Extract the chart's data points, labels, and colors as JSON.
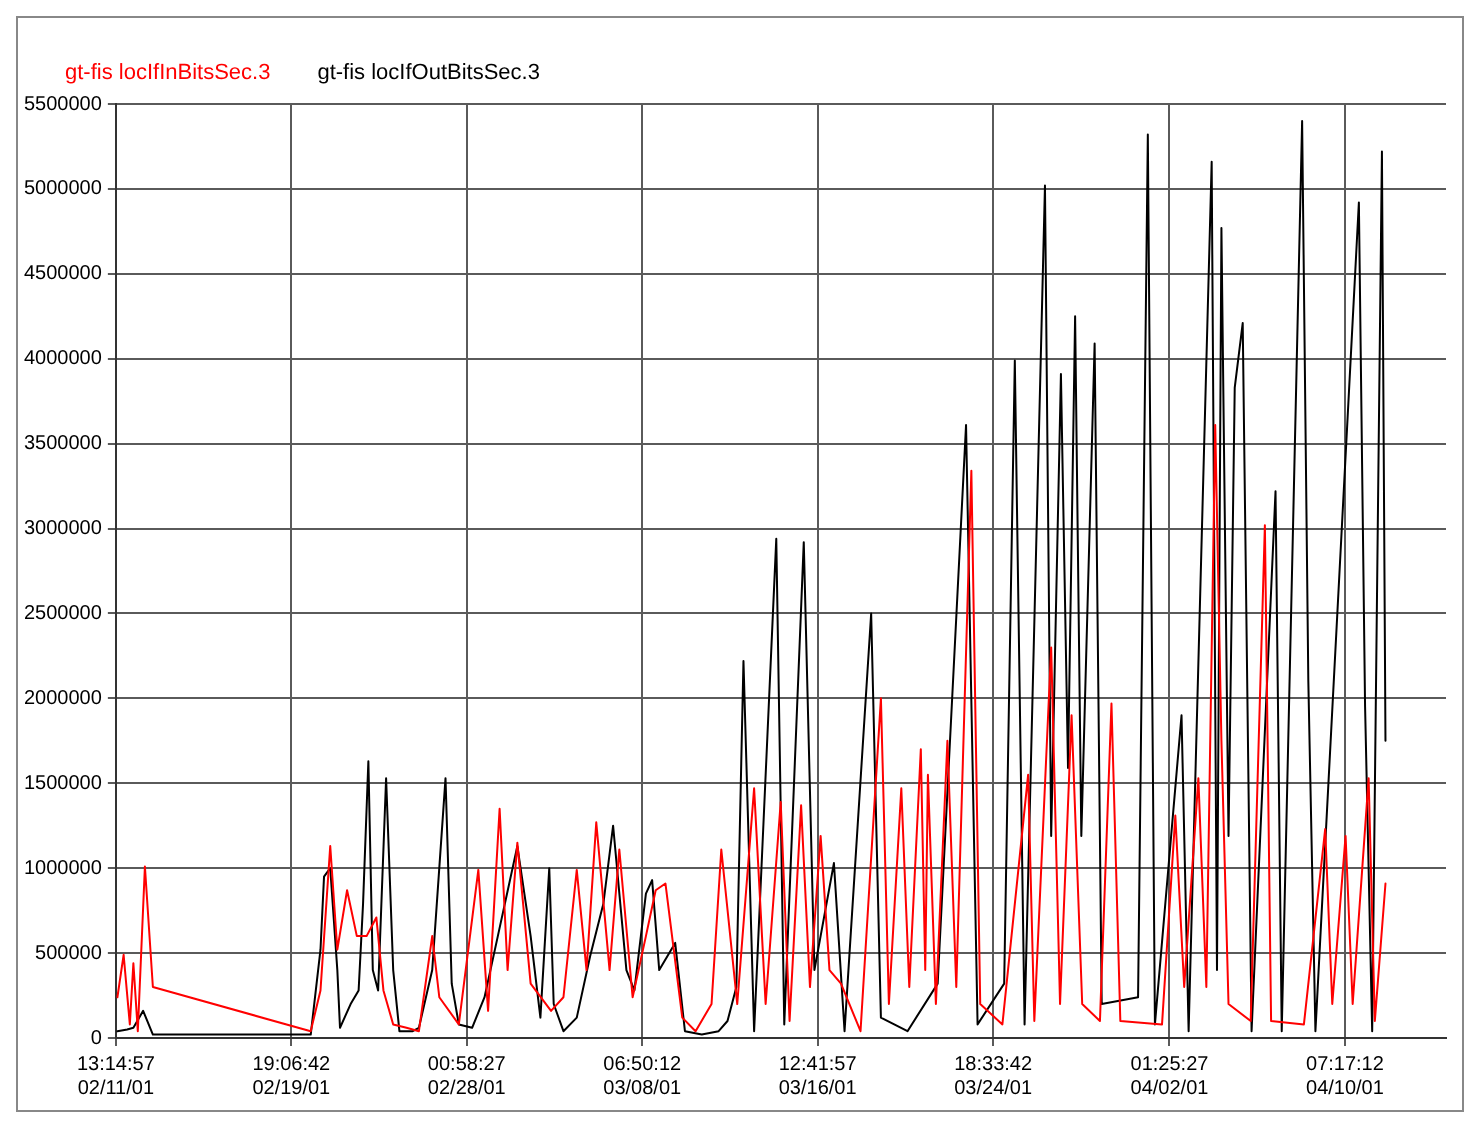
{
  "chart_data": {
    "type": "line",
    "legend": "top left",
    "grid": true,
    "marker": "none",
    "line_style": "solid",
    "xlim": [
      "--02-11T13:14:57",
      "--04-15T01:15"
    ],
    "ylim": [
      0,
      5500000
    ],
    "xticks": [
      {
        "value": "--02-11T13:14:57",
        "label": "13:14:57\n02/11/01"
      },
      {
        "value": "--02-19T19:06:42",
        "label": "19:06:42\n02/19/01"
      },
      {
        "value": "--02-28T00:58:27",
        "label": "00:58:27\n02/28/01"
      },
      {
        "value": "--03-08T06:50:12",
        "label": "06:50:12\n03/08/01"
      },
      {
        "value": "--03-16T12:41:57",
        "label": "12:41:57\n03/16/01"
      },
      {
        "value": "--03-24T18:33:42",
        "label": "18:33:42\n03/24/01"
      },
      {
        "value": "--04-02T01:25:27",
        "label": "01:25:27\n04/02/01"
      },
      {
        "value": "--04-10T07:17:12",
        "label": "07:17:12\n04/10/01"
      }
    ],
    "yticks": [
      0,
      500000,
      1000000,
      1500000,
      2000000,
      2500000,
      3000000,
      3500000,
      4000000,
      4500000,
      5000000,
      5500000
    ],
    "series": [
      {
        "name": "gt-fis locIfInBitsSec.3",
        "color": "#ff0000",
        "x": [
          "--02-11T15:00",
          "--02-11T22:00",
          "--02-12T05:00",
          "--02-12T09:00",
          "--02-12T14:00",
          "--02-12T22:00",
          "--02-13T07:00",
          "--02-20T17:00",
          "--02-21T04:00",
          "--02-21T15:00",
          "--02-21T23:00",
          "--02-22T10:00",
          "--02-22T21:00",
          "--02-23T08:00",
          "--02-23T19:00",
          "--02-24T03:00",
          "--02-24T14:00",
          "--02-25T05:00",
          "--02-25T19:00",
          "--02-26T10:00",
          "--02-26T18:00",
          "--02-27T16:00",
          "--02-28T14:00",
          "--03-01T01:00",
          "--03-01T14:00",
          "--03-01T23:00",
          "--03-02T10:00",
          "--03-03T01:00",
          "--03-04T00:00",
          "--03-04T14:00",
          "--03-05T05:00",
          "--03-05T16:00",
          "--03-06T03:00",
          "--03-06T18:00",
          "--03-07T05:00",
          "--03-07T20:00",
          "--03-08T11:00",
          "--03-08T22:00",
          "--03-09T09:00",
          "--03-10T04:00",
          "--03-10T19:00",
          "--03-11T13:00",
          "--03-12T00:00",
          "--03-12T18:00",
          "--03-13T13:00",
          "--03-14T02:00",
          "--03-14T19:00",
          "--03-15T05:00",
          "--03-15T18:00",
          "--03-16T04:00",
          "--03-16T16:00",
          "--03-17T02:00",
          "--03-17T15:00",
          "--03-18T13:00",
          "--03-19T12:00",
          "--03-19T21:00",
          "--03-20T11:00",
          "--03-20T20:00",
          "--03-21T09:00",
          "--03-21T14:00",
          "--03-21T17:00",
          "--03-22T02:00",
          "--03-22T15:00",
          "--03-23T01:00",
          "--03-23T18:00",
          "--03-24T04:00",
          "--03-25T05:00",
          "--03-26T10:00",
          "--03-26T17:00",
          "--03-27T12:00",
          "--03-27T22:00",
          "--03-28T11:00",
          "--03-28T23:00",
          "--03-29T19:00",
          "--03-30T08:00",
          "--03-30T18:00",
          "--04-01T17:00",
          "--04-02T08:00",
          "--04-02T18:00",
          "--04-03T10:00",
          "--04-03T19:00",
          "--04-04T05:00",
          "--04-04T12:00",
          "--04-04T20:00",
          "--04-05T21:00",
          "--04-06T13:00",
          "--04-06T20:00",
          "--04-08T09:00",
          "--04-09T09:00",
          "--04-09T17:00",
          "--04-10T08:00",
          "--04-10T16:00",
          "--04-11T10:00",
          "--04-11T17:00",
          "--04-12T05:00"
        ],
        "values": [
          240000,
          490000,
          80000,
          440000,
          40000,
          1010000,
          300000,
          40000,
          280000,
          1130000,
          520000,
          870000,
          600000,
          600000,
          710000,
          280000,
          80000,
          60000,
          40000,
          600000,
          240000,
          80000,
          990000,
          160000,
          1350000,
          400000,
          1150000,
          320000,
          160000,
          240000,
          990000,
          400000,
          1270000,
          400000,
          1110000,
          240000,
          600000,
          870000,
          910000,
          120000,
          40000,
          200000,
          1110000,
          200000,
          1470000,
          200000,
          1390000,
          100000,
          1370000,
          300000,
          1190000,
          400000,
          320000,
          40000,
          2000000,
          200000,
          1470000,
          300000,
          1700000,
          400000,
          1550000,
          200000,
          1750000,
          300000,
          3340000,
          200000,
          80000,
          1550000,
          100000,
          2300000,
          200000,
          1900000,
          200000,
          100000,
          1970000,
          100000,
          80000,
          1310000,
          300000,
          1530000,
          300000,
          3610000,
          1750000,
          200000,
          100000,
          3020000,
          100000,
          80000,
          1230000,
          200000,
          1190000,
          200000,
          1530000,
          100000,
          910000
        ]
      },
      {
        "name": "gt-fis locIfOutBitsSec.3",
        "color": "#000000",
        "x": [
          "--02-11T15:00",
          "--02-12T02:00",
          "--02-12T09:00",
          "--02-12T20:00",
          "--02-13T07:00",
          "--02-20T17:00",
          "--02-21T04:00",
          "--02-21T08:00",
          "--02-21T15:00",
          "--02-21T23:00",
          "--02-22T02:00",
          "--02-22T14:00",
          "--02-22T23:00",
          "--02-23T04:00",
          "--02-23T10:00",
          "--02-23T15:00",
          "--02-23T21:00",
          "--02-24T06:00",
          "--02-24T14:00",
          "--02-24T21:00",
          "--02-25T12:00",
          "--02-25T19:00",
          "--02-26T10:00",
          "--02-27T01:00",
          "--02-27T08:00",
          "--02-27T16:00",
          "--02-28T07:00",
          "--02-28T21:00",
          "--03-01T12:00",
          "--03-02T10:00",
          "--03-03T01:00",
          "--03-03T12:00",
          "--03-03T22:00",
          "--03-04T03:00",
          "--03-04T14:00",
          "--03-05T05:00",
          "--03-05T20:00",
          "--03-06T11:00",
          "--03-06T22:00",
          "--03-07T13:00",
          "--03-07T22:00",
          "--03-08T11:00",
          "--03-08T18:00",
          "--03-09T02:00",
          "--03-09T20:00",
          "--03-10T07:00",
          "--03-11T02:00",
          "--03-11T21:00",
          "--03-12T07:00",
          "--03-12T17:00",
          "--03-13T01:00",
          "--03-13T13:00",
          "--03-14T14:00",
          "--03-14T23:00",
          "--03-15T21:00",
          "--03-16T09:00",
          "--03-17T07:00",
          "--03-17T19:00",
          "--03-19T01:00",
          "--03-19T12:00",
          "--03-20T18:00",
          "--03-22T04:00",
          "--03-23T12:00",
          "--03-24T01:00",
          "--03-25T07:00",
          "--03-25T19:00",
          "--03-26T06:00",
          "--03-27T05:00",
          "--03-27T12:00",
          "--03-27T23:00",
          "--03-28T07:00",
          "--03-28T15:00",
          "--03-28T22:00",
          "--03-29T13:00",
          "--03-29T21:00",
          "--03-31T14:00",
          "--04-01T01:00",
          "--04-01T09:00",
          "--04-02T15:00",
          "--04-02T23:00",
          "--04-04T01:00",
          "--04-04T07:00",
          "--04-04T12:00",
          "--04-04T20:00",
          "--04-05T03:00",
          "--04-05T12:00",
          "--04-05T22:00",
          "--04-07T01:00",
          "--04-07T08:00",
          "--04-08T07:00",
          "--04-08T14:00",
          "--04-08T22:00",
          "--04-10T23:00",
          "--04-11T06:00",
          "--04-11T14:00",
          "--04-12T01:00",
          "--04-12T05:00"
        ],
        "values": [
          40000,
          50000,
          60000,
          160000,
          20000,
          20000,
          520000,
          950000,
          1000000,
          400000,
          60000,
          200000,
          280000,
          790000,
          1630000,
          400000,
          280000,
          1530000,
          400000,
          40000,
          40000,
          60000,
          400000,
          1530000,
          320000,
          80000,
          60000,
          240000,
          600000,
          1130000,
          600000,
          120000,
          1000000,
          200000,
          40000,
          120000,
          480000,
          790000,
          1250000,
          400000,
          280000,
          850000,
          930000,
          400000,
          560000,
          40000,
          20000,
          40000,
          100000,
          300000,
          2220000,
          40000,
          2940000,
          80000,
          2920000,
          400000,
          1030000,
          40000,
          2500000,
          120000,
          40000,
          320000,
          3610000,
          80000,
          320000,
          3990000,
          80000,
          5020000,
          1190000,
          3910000,
          1590000,
          4250000,
          1190000,
          4090000,
          200000,
          240000,
          5320000,
          80000,
          1900000,
          40000,
          5160000,
          400000,
          4770000,
          1190000,
          3830000,
          4210000,
          40000,
          3220000,
          40000,
          5400000,
          2100000,
          40000,
          4920000,
          1950000,
          40000,
          5220000,
          1750000
        ]
      }
    ]
  }
}
